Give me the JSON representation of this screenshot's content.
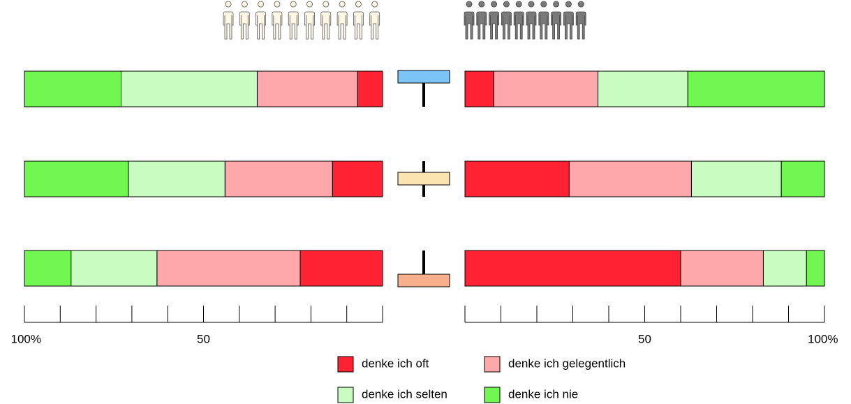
{
  "chart_data": [
    {
      "type": "bar",
      "orientation": "horizontal",
      "stacked": true,
      "xlim": [
        100,
        0
      ],
      "xticks": [
        {
          "value": 100,
          "label": "100%"
        },
        {
          "value": 90,
          "label": null
        },
        {
          "value": 80,
          "label": null
        },
        {
          "value": 70,
          "label": null
        },
        {
          "value": 60,
          "label": null
        },
        50,
        {
          "value": 40,
          "label": null
        },
        {
          "value": 30,
          "label": null
        },
        {
          "value": 20,
          "label": null
        },
        {
          "value": 10,
          "label": null
        },
        {
          "value": 0,
          "label": null
        }
      ],
      "series": [
        {
          "name": "denke ich oft",
          "color": "#ff2233",
          "values": [
            7,
            14,
            23
          ]
        },
        {
          "name": "denke ich gelegentlich",
          "color": "#ffa8ac",
          "values": [
            28,
            30,
            40
          ]
        },
        {
          "name": "denke ich selten",
          "color": "#c8fcc0",
          "values": [
            38,
            27,
            24
          ]
        },
        {
          "name": "denke ich nie",
          "color": "#72f752",
          "values": [
            27,
            29,
            13
          ]
        }
      ]
    },
    {
      "type": "bar",
      "orientation": "horizontal",
      "stacked": true,
      "xlim": [
        0,
        100
      ],
      "xticks": [
        {
          "value": 0,
          "label": null
        },
        {
          "value": 10,
          "label": null
        },
        {
          "value": 20,
          "label": null
        },
        {
          "value": 30,
          "label": null
        },
        {
          "value": 40,
          "label": null
        },
        50,
        {
          "value": 60,
          "label": null
        },
        {
          "value": 70,
          "label": null
        },
        {
          "value": 80,
          "label": null
        },
        {
          "value": 90,
          "label": null
        },
        {
          "value": 100,
          "label": "100%"
        }
      ],
      "series": [
        {
          "color": "#ff2233",
          "values": [
            8,
            29,
            60
          ]
        },
        {
          "color": "#ffa8ac",
          "values": [
            29,
            34,
            23
          ]
        },
        {
          "color": "#c8fcc0",
          "values": [
            25,
            25,
            12
          ]
        },
        {
          "color": "#72f752",
          "values": [
            38,
            12,
            5
          ]
        }
      ]
    }
  ]
}
